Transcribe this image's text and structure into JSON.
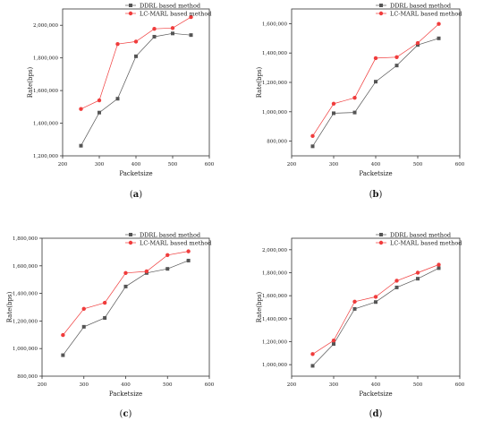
{
  "chart_data": [
    {
      "type": "line",
      "panel_label": "a",
      "xlabel": "Packetsize",
      "ylabel": "Rate(bps)",
      "xlim": [
        200,
        600
      ],
      "ylim": [
        1200000,
        2100000
      ],
      "xticks": [
        200,
        300,
        400,
        500,
        600
      ],
      "xtick_labels": [
        "200",
        "300",
        "400",
        "500",
        "600"
      ],
      "yticks": [
        1200000,
        1400000,
        1600000,
        1800000,
        2000000
      ],
      "ytick_labels": [
        "1,200,000",
        "1,400,000",
        "1,600,000",
        "1,800,000",
        "2,000,000"
      ],
      "legend_position": "top-right",
      "grid": false,
      "x": [
        250,
        300,
        350,
        400,
        450,
        500,
        550
      ],
      "series": [
        {
          "name": "DDRL based method",
          "color": "#555555",
          "marker": "square",
          "values": [
            1262000,
            1465000,
            1550000,
            1810000,
            1930000,
            1950000,
            1940000
          ]
        },
        {
          "name": "LC-MARL based method",
          "color": "#f03c3c",
          "marker": "circle",
          "values": [
            1487000,
            1540000,
            1885000,
            1900000,
            1978000,
            1983000,
            2050000
          ]
        }
      ]
    },
    {
      "type": "line",
      "panel_label": "b",
      "xlabel": "Packetsize",
      "ylabel": "Rate(bps)",
      "xlim": [
        200,
        600
      ],
      "ylim": [
        700000,
        1700000
      ],
      "xticks": [
        200,
        300,
        400,
        500,
        600
      ],
      "xtick_labels": [
        "200",
        "300",
        "400",
        "500",
        "600"
      ],
      "yticks": [
        800000,
        1000000,
        1200000,
        1400000,
        1600000
      ],
      "ytick_labels": [
        "800,000",
        "1,000,000",
        "1,200,000",
        "1,400,000",
        "1,600,000"
      ],
      "legend_position": "top-right",
      "grid": false,
      "x": [
        250,
        300,
        350,
        400,
        450,
        500,
        550
      ],
      "series": [
        {
          "name": "DDRL based method",
          "color": "#555555",
          "marker": "square",
          "values": [
            765000,
            990000,
            995000,
            1205000,
            1315000,
            1455000,
            1500000
          ]
        },
        {
          "name": "LC-MARL based method",
          "color": "#f03c3c",
          "marker": "circle",
          "values": [
            835000,
            1055000,
            1095000,
            1365000,
            1372000,
            1468000,
            1598000
          ]
        }
      ]
    },
    {
      "type": "line",
      "panel_label": "c",
      "xlabel": "Packetsize",
      "ylabel": "Rate(bps)",
      "xlim": [
        200,
        600
      ],
      "ylim": [
        800000,
        1800000
      ],
      "xticks": [
        200,
        300,
        400,
        500,
        600
      ],
      "xtick_labels": [
        "200",
        "300",
        "400",
        "500",
        "600"
      ],
      "yticks": [
        800000,
        1000000,
        1200000,
        1400000,
        1600000,
        1800000
      ],
      "ytick_labels": [
        "800,000",
        "1,000,000",
        "1,200,000",
        "1,400,000",
        "1,600,000",
        "1,800,000"
      ],
      "legend_position": "top-right",
      "grid": false,
      "x": [
        250,
        300,
        350,
        400,
        450,
        500,
        550
      ],
      "series": [
        {
          "name": "DDRL based method",
          "color": "#555555",
          "marker": "square",
          "values": [
            952000,
            1158000,
            1222000,
            1450000,
            1548000,
            1578000,
            1638000
          ]
        },
        {
          "name": "LC-MARL based method",
          "color": "#f03c3c",
          "marker": "circle",
          "values": [
            1098000,
            1288000,
            1332000,
            1548000,
            1560000,
            1678000,
            1705000
          ]
        }
      ]
    },
    {
      "type": "line",
      "panel_label": "d",
      "xlabel": "Packetsize",
      "ylabel": "Rate(bps)",
      "xlim": [
        200,
        600
      ],
      "ylim": [
        900000,
        2100000
      ],
      "xticks": [
        200,
        300,
        400,
        500,
        600
      ],
      "xtick_labels": [
        "200",
        "300",
        "400",
        "500",
        "600"
      ],
      "yticks": [
        1000000,
        1200000,
        1400000,
        1600000,
        1800000,
        2000000
      ],
      "ytick_labels": [
        "1,000,000",
        "1,200,000",
        "1,400,000",
        "1,600,000",
        "1,800,000",
        "2,000,000"
      ],
      "legend_position": "top-right",
      "grid": false,
      "x": [
        250,
        300,
        350,
        400,
        450,
        500,
        550
      ],
      "series": [
        {
          "name": "DDRL based method",
          "color": "#555555",
          "marker": "square",
          "values": [
            990000,
            1180000,
            1485000,
            1545000,
            1672000,
            1748000,
            1840000
          ]
        },
        {
          "name": "LC-MARL based method",
          "color": "#f03c3c",
          "marker": "circle",
          "values": [
            1092000,
            1210000,
            1548000,
            1590000,
            1730000,
            1800000,
            1870000
          ]
        }
      ]
    }
  ]
}
